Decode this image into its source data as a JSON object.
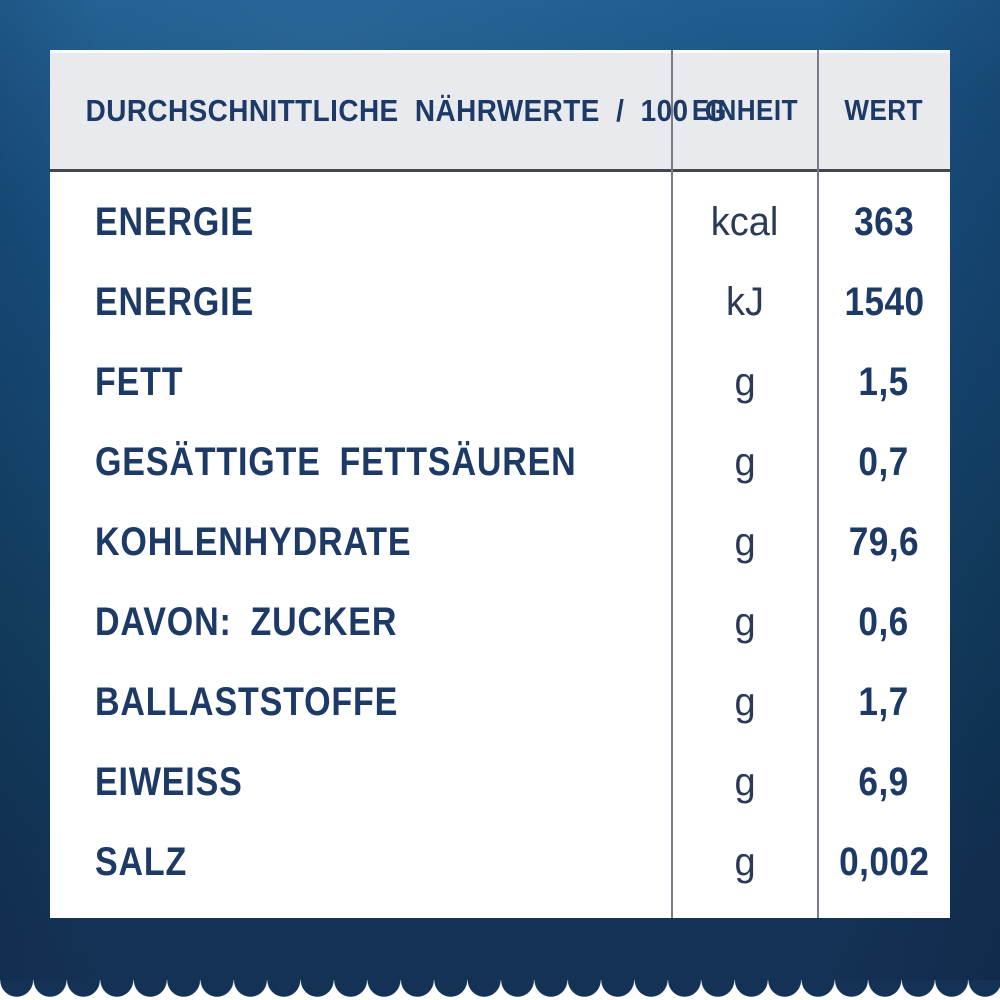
{
  "table": {
    "header": {
      "label": "DURCHSCHNITTLICHE NÄHRWERTE / 100 G",
      "unit": "EINHEIT",
      "value": "WERT"
    },
    "rows": [
      {
        "label": "ENERGIE",
        "unit": "kcal",
        "value": "363"
      },
      {
        "label": "ENERGIE",
        "unit": "kJ",
        "value": "1540"
      },
      {
        "label": "FETT",
        "unit": "g",
        "value": "1,5"
      },
      {
        "label": "GESÄTTIGTE FETTSÄUREN",
        "unit": "g",
        "value": "0,7"
      },
      {
        "label": "KOHLENHYDRATE",
        "unit": "g",
        "value": "79,6"
      },
      {
        "label": "DAVON: ZUCKER",
        "unit": "g",
        "value": "0,6"
      },
      {
        "label": "BALLASTSTOFFE",
        "unit": "g",
        "value": "1,7"
      },
      {
        "label": "EIWEISS",
        "unit": "g",
        "value": "6,9"
      },
      {
        "label": "SALZ",
        "unit": "g",
        "value": "0,002"
      }
    ]
  },
  "colors": {
    "text_navy": "#1d3a66",
    "header_background": "#e8eaee",
    "header_underline": "#42474e",
    "column_divider": "#767d88",
    "background_blue_top": "#1f5d90",
    "background_blue_bottom": "#143255",
    "table_background": "#ffffff"
  }
}
